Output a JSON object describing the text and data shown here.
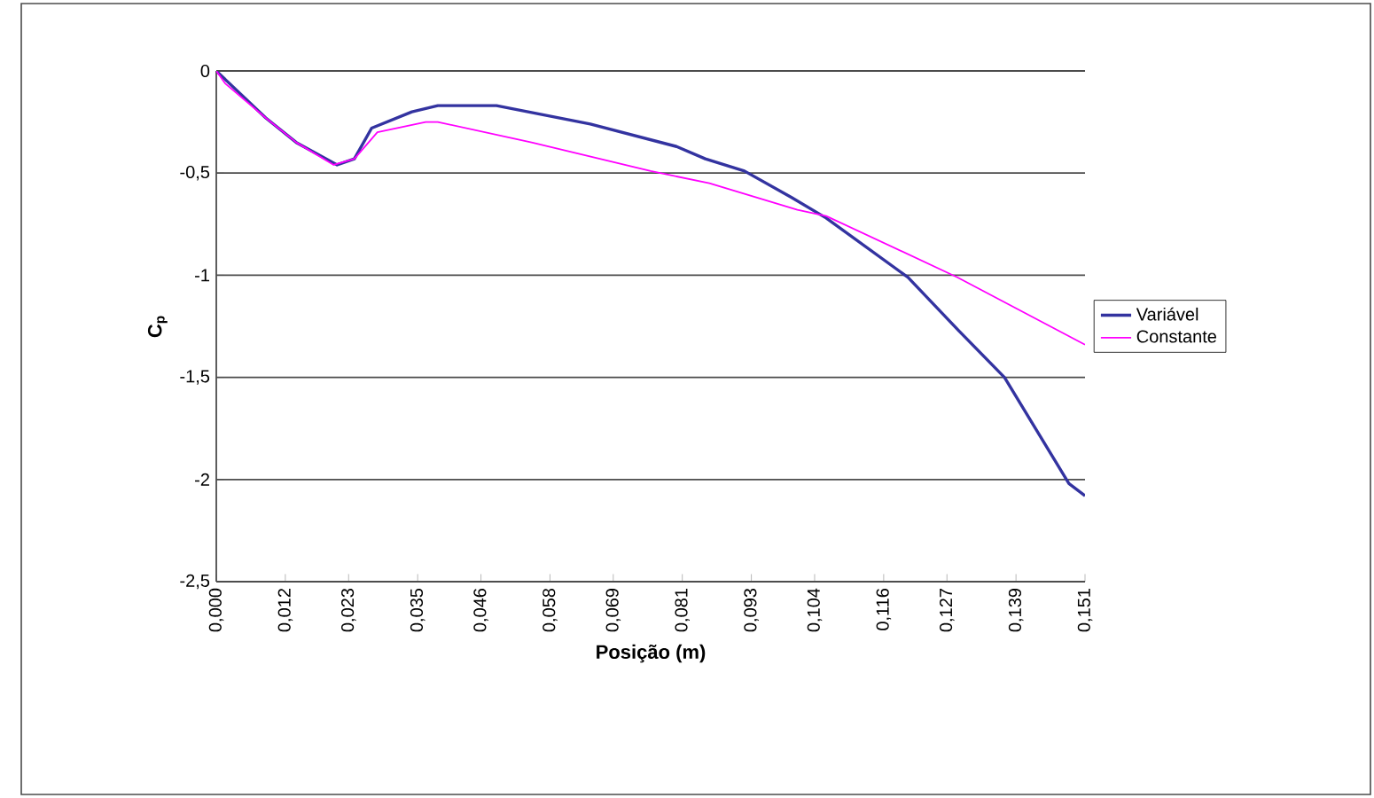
{
  "chart_data": {
    "type": "line",
    "xlabel": "Posição (m)",
    "ylabel": "C$_{p}$",
    "xlim": [
      0,
      0.151
    ],
    "xticks": [
      {
        "value": 0,
        "label": "0,000"
      },
      {
        "value": 0.012,
        "label": "0,012"
      },
      {
        "value": 0.023,
        "label": "0,023"
      },
      {
        "value": 0.035,
        "label": "0,035"
      },
      {
        "value": 0.046,
        "label": "0,046"
      },
      {
        "value": 0.058,
        "label": "0,058"
      },
      {
        "value": 0.069,
        "label": "0,069"
      },
      {
        "value": 0.081,
        "label": "0,081"
      },
      {
        "value": 0.093,
        "label": "0,093"
      },
      {
        "value": 0.104,
        "label": "0,104"
      },
      {
        "value": 0.116,
        "label": "0,116"
      },
      {
        "value": 0.127,
        "label": "0,127"
      },
      {
        "value": 0.139,
        "label": "0,139"
      },
      {
        "value": 0.151,
        "label": "0,151"
      }
    ],
    "ylim": [
      -2.5,
      0
    ],
    "yticks": [
      0,
      {
        "value": -0.5,
        "label": "-0,5"
      },
      -1,
      {
        "value": -1.5,
        "label": "-1,5"
      },
      -2,
      {
        "value": -2.5,
        "label": "-2,5"
      }
    ],
    "grid": "y",
    "legend": "right",
    "marker": "none",
    "line_style": "solid",
    "series": [
      {
        "name": "Variável",
        "color": "#3333a0",
        "x": [
          0,
          0.0086,
          0.0139,
          0.021,
          0.024,
          0.027,
          0.034,
          0.0385,
          0.0487,
          0.065,
          0.08,
          0.085,
          0.0918,
          0.1,
          0.106,
          0.1202,
          0.129,
          0.137,
          0.1482,
          0.151
        ],
        "values": [
          0,
          -0.23,
          -0.35,
          -0.46,
          -0.43,
          -0.28,
          -0.2,
          -0.17,
          -0.17,
          -0.26,
          -0.37,
          -0.43,
          -0.49,
          -0.62,
          -0.72,
          -1.01,
          -1.27,
          -1.5,
          -2.02,
          -2.08
        ]
      },
      {
        "name": "Constante",
        "color": "#ff00ff",
        "x": [
          0,
          0.0015,
          0.0086,
          0.0139,
          0.0204,
          0.024,
          0.028,
          0.0364,
          0.0385,
          0.0548,
          0.0755,
          0.0857,
          0.101,
          0.106,
          0.1288,
          0.151
        ],
        "values": [
          0,
          -0.06,
          -0.23,
          -0.35,
          -0.46,
          -0.43,
          -0.3,
          -0.25,
          -0.25,
          -0.35,
          -0.49,
          -0.55,
          -0.68,
          -0.71,
          -1.01,
          -1.34
        ]
      }
    ]
  }
}
